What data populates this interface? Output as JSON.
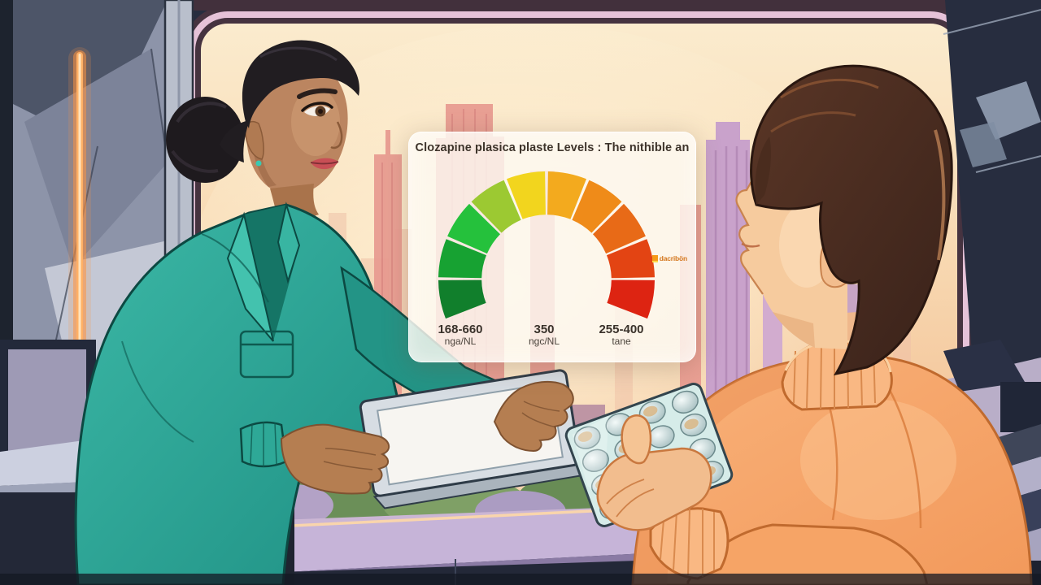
{
  "scene": {
    "description": "Illustrated scene: a clinician in a teal coat holding a tablet talks with a patient in an orange sweater holding a blister pack of pills, in front of a large window showing a sunset city skyline; a translucent panel displays a colored gauge chart of medication plasma levels."
  },
  "chart_data": {
    "type": "gauge",
    "title": "Clozapine plasica plaste Levels : The nithible an",
    "arc": {
      "start_angle_deg": -112,
      "end_angle_deg": 112,
      "inner_radius_ratio": 0.6,
      "segment_gap_deg": 1.6
    },
    "segments": [
      {
        "color": "#117f2c"
      },
      {
        "color": "#17a232"
      },
      {
        "color": "#25c13c"
      },
      {
        "color": "#9cc932"
      },
      {
        "color": "#f2d51e"
      },
      {
        "color": "#f3aa1e"
      },
      {
        "color": "#ef8b19"
      },
      {
        "color": "#e86a17"
      },
      {
        "color": "#e34413"
      },
      {
        "color": "#dd2412"
      }
    ],
    "tick_labels": [
      {
        "value": "168-660",
        "unit": "nga/NL",
        "position": "left"
      },
      {
        "value": "350",
        "unit": "ngc/NL",
        "position": "center"
      },
      {
        "value": "255-400",
        "unit": "tane",
        "position": "right"
      }
    ],
    "annotation": {
      "text": "dacribön",
      "color": "#d4761c",
      "marker_color": "#ffd84a"
    },
    "legend": "none",
    "grid": false
  },
  "colors": {
    "coat_teal": "#2aa092",
    "coat_teal_light": "#3cb8a6",
    "sweater_orange": "#f6a466",
    "neon_orange": "#ff9440",
    "sky_top": "#fbeccf",
    "sky_bottom": "#edbd96",
    "skyline_pink": "#e89a90",
    "skyline_lavender": "#c9a2cb",
    "wall_blue_grey": "#8d94a9",
    "dark_wall": "#272d3f",
    "sill_lavender": "#c6b4d8",
    "counter_dark": "#1d2230",
    "panel_bg": "rgba(253,249,242,0.82)"
  }
}
